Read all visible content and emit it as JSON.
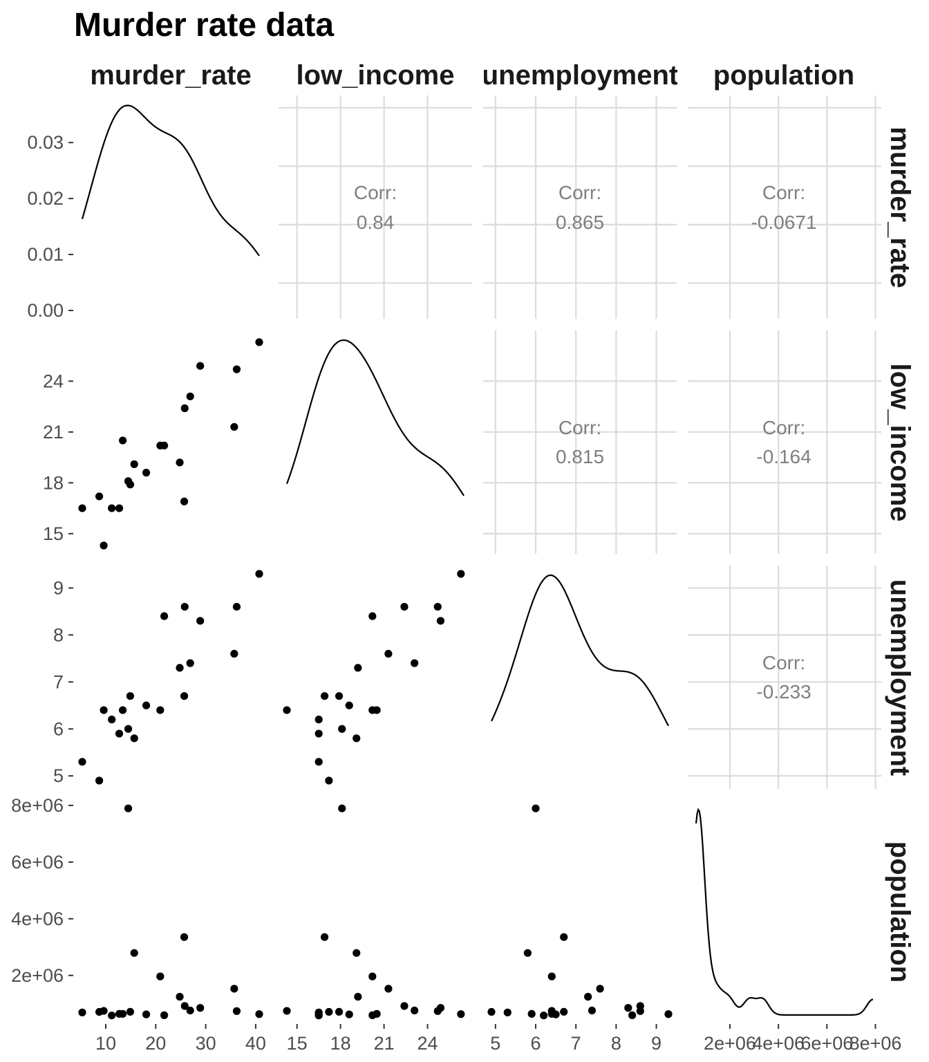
{
  "chart_data": {
    "type": "scatter",
    "title": "Murder rate data",
    "variables": [
      "murder_rate",
      "low_income",
      "unemployment",
      "population"
    ],
    "tick_labels": {
      "murder_rate_density": [
        "0.00",
        "0.01",
        "0.02",
        "0.03"
      ],
      "murder_rate": [
        "10",
        "20",
        "30",
        "40"
      ],
      "low_income": [
        "15",
        "18",
        "21",
        "24"
      ],
      "unemployment": [
        "5",
        "6",
        "7",
        "8",
        "9"
      ],
      "population": [
        "2e+06",
        "4e+06",
        "6e+06",
        "8e+06"
      ]
    },
    "correlations": {
      "label": "Corr:",
      "murder_rate__low_income": "0.84",
      "murder_rate__unemployment": "0.865",
      "murder_rate__population": "-0.0671",
      "low_income__unemployment": "0.815",
      "low_income__population": "-0.164",
      "unemployment__population": "-0.233"
    },
    "axis_ranges": {
      "murder_rate": [
        5.3,
        40.7
      ],
      "low_income": [
        14.3,
        26.5
      ],
      "unemployment": [
        4.9,
        9.3
      ],
      "population": [
        604000,
        7900000
      ]
    },
    "points": [
      {
        "murder_rate": 11.2,
        "low_income": 16.5,
        "unemployment": 6.2,
        "population": 587000
      },
      {
        "murder_rate": 13.4,
        "low_income": 20.5,
        "unemployment": 6.4,
        "population": 643000
      },
      {
        "murder_rate": 40.7,
        "low_income": 26.3,
        "unemployment": 9.3,
        "population": 635000
      },
      {
        "murder_rate": 5.3,
        "low_income": 16.5,
        "unemployment": 5.3,
        "population": 692000
      },
      {
        "murder_rate": 24.8,
        "low_income": 19.2,
        "unemployment": 7.3,
        "population": 1248000
      },
      {
        "murder_rate": 12.7,
        "low_income": 16.5,
        "unemployment": 5.9,
        "population": 643000
      },
      {
        "murder_rate": 20.9,
        "low_income": 20.2,
        "unemployment": 6.4,
        "population": 1964000
      },
      {
        "murder_rate": 35.7,
        "low_income": 21.3,
        "unemployment": 7.6,
        "population": 1531000
      },
      {
        "murder_rate": 8.7,
        "low_income": 17.2,
        "unemployment": 4.9,
        "population": 713000
      },
      {
        "murder_rate": 9.6,
        "low_income": 14.3,
        "unemployment": 6.4,
        "population": 749000
      },
      {
        "murder_rate": 14.5,
        "low_income": 18.1,
        "unemployment": 6.0,
        "population": 7895000
      },
      {
        "murder_rate": 26.9,
        "low_income": 23.1,
        "unemployment": 7.4,
        "population": 762000
      },
      {
        "murder_rate": 15.7,
        "low_income": 19.1,
        "unemployment": 5.8,
        "population": 2793000
      },
      {
        "murder_rate": 36.2,
        "low_income": 24.7,
        "unemployment": 8.6,
        "population": 741000
      },
      {
        "murder_rate": 18.1,
        "low_income": 18.6,
        "unemployment": 6.5,
        "population": 625000
      },
      {
        "murder_rate": 28.9,
        "low_income": 24.9,
        "unemployment": 8.3,
        "population": 854000
      },
      {
        "murder_rate": 14.9,
        "low_income": 17.9,
        "unemployment": 6.7,
        "population": 716000
      },
      {
        "murder_rate": 25.8,
        "low_income": 22.4,
        "unemployment": 8.6,
        "population": 921000
      },
      {
        "murder_rate": 21.7,
        "low_income": 20.2,
        "unemployment": 8.4,
        "population": 595000
      },
      {
        "murder_rate": 25.7,
        "low_income": 16.9,
        "unemployment": 6.7,
        "population": 3353000
      }
    ],
    "grid": true,
    "legend": "none"
  }
}
